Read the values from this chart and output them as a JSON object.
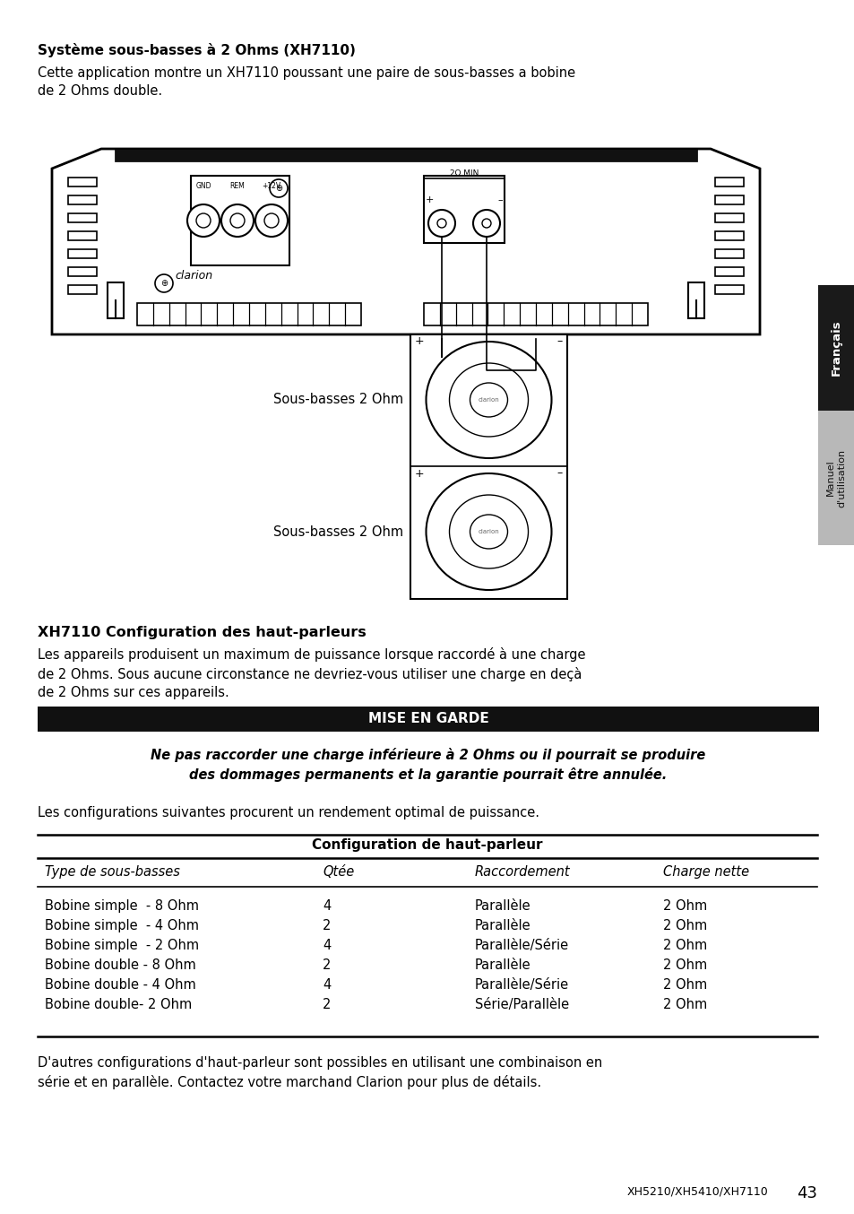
{
  "title_section": "Système sous-basses à 2 Ohms (XH7110)",
  "intro_text": "Cette application montre un XH7110 poussant une paire de sous-basses a bobine\nde 2 Ohms double.",
  "section2_title": "XH7110 Configuration des haut-parleurs",
  "section2_text": "Les appareils produisent un maximum de puissance lorsque raccordé à une charge\nde 2 Ohms. Sous aucune circonstance ne devriez-vous utiliser une charge en deçà\nde 2 Ohms sur ces appareils.",
  "warning_title": "MISE EN GARDE",
  "warning_text": "Ne pas raccorder une charge inférieure à 2 Ohms ou il pourrait se produire\ndes dommages permanents et la garantie pourrait être annulée.",
  "configs_intro": "Les configurations suivantes procurent un rendement optimal de puissance.",
  "table_title": "Configuration de haut-parleur",
  "table_headers": [
    "Type de sous-basses",
    "Qtée",
    "Raccordement",
    "Charge nette"
  ],
  "table_rows": [
    [
      "Bobine simple  - 8 Ohm",
      "4",
      "Parallèle",
      "2 Ohm"
    ],
    [
      "Bobine simple  - 4 Ohm",
      "2",
      "Parallèle",
      "2 Ohm"
    ],
    [
      "Bobine simple  - 2 Ohm",
      "4",
      "Parallèle/Série",
      "2 Ohm"
    ],
    [
      "Bobine double - 8 Ohm",
      "2",
      "Parallèle",
      "2 Ohm"
    ],
    [
      "Bobine double - 4 Ohm",
      "4",
      "Parallèle/Série",
      "2 Ohm"
    ],
    [
      "Bobine double- 2 Ohm",
      "2",
      "Série/Parallèle",
      "2 Ohm"
    ]
  ],
  "footer_text": "D'autres configurations d'haut-parleur sont possibles en utilisant une combinaison en\nsérie et en parallèle. Contactez votre marchand Clarion pour plus de détails.",
  "page_number": "43",
  "page_ref": "XH5210/XH5410/XH7110",
  "tab_francais": "Français",
  "tab_manuel": "Manuel\nd'utilisation",
  "bg_color": "#ffffff",
  "text_color": "#000000"
}
